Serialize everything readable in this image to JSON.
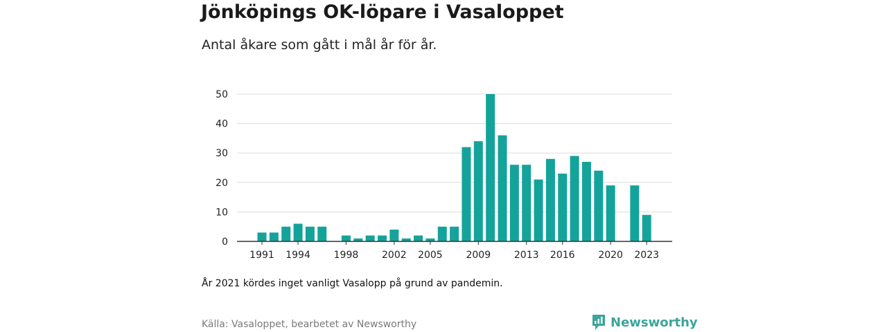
{
  "header": {
    "title": "Jönköpings OK-löpare i Vasaloppet",
    "subtitle": "Antal åkare som gått i mål år för år."
  },
  "footer": {
    "note": "År 2021 kördes inget vanligt Vasalopp på grund av pandemin.",
    "source": "Källa: Vasaloppet, bearbetet av Newsworthy",
    "brand": "Newsworthy",
    "brand_icon": "newsworthy-logo-icon"
  },
  "colors": {
    "bar": "#14a39a",
    "grid": "#dcdcdc",
    "axis": "#333333",
    "brand": "#3aa59a"
  },
  "chart_data": {
    "type": "bar",
    "title": "Jönköpings OK-löpare i Vasaloppet",
    "subtitle": "Antal åkare som gått i mål år för år.",
    "categories": [
      1991,
      1992,
      1993,
      1994,
      1995,
      1996,
      1997,
      1998,
      1999,
      2000,
      2001,
      2002,
      2003,
      2004,
      2005,
      2006,
      2007,
      2008,
      2009,
      2010,
      2011,
      2012,
      2013,
      2014,
      2015,
      2016,
      2017,
      2018,
      2019,
      2020,
      2021,
      2022,
      2023
    ],
    "values": [
      3,
      3,
      5,
      6,
      5,
      5,
      0,
      2,
      1,
      2,
      2,
      4,
      1,
      2,
      1,
      5,
      5,
      32,
      34,
      50,
      36,
      26,
      26,
      21,
      28,
      23,
      29,
      27,
      24,
      19,
      0,
      19,
      9
    ],
    "x_tick_labels": [
      "1991",
      "1994",
      "1998",
      "2002",
      "2005",
      "2009",
      "2013",
      "2016",
      "2020",
      "2023"
    ],
    "y_ticks": [
      0,
      10,
      20,
      30,
      40,
      50
    ],
    "ylim": [
      0,
      50
    ],
    "grid": true,
    "legend": "none"
  }
}
